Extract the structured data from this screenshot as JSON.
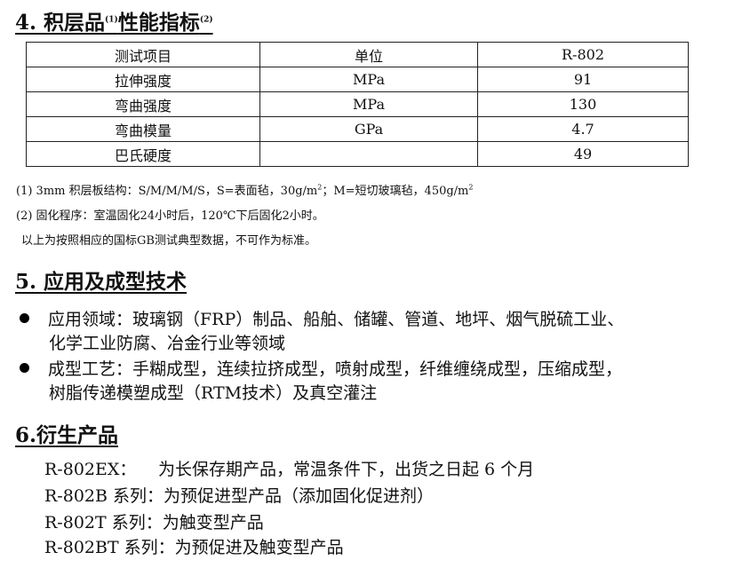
{
  "section4": {
    "title_a": "4. 积层品",
    "sup1": "(1)",
    "title_b": "性能指标",
    "sup2": "(2)"
  },
  "table": {
    "headers": [
      "测试项目",
      "单位",
      "R-802"
    ],
    "rows": [
      [
        "拉伸强度",
        "MPa",
        "91"
      ],
      [
        "弯曲强度",
        "MPa",
        "130"
      ],
      [
        "弯曲模量",
        "GPa",
        "4.7"
      ],
      [
        "巴氏硬度",
        "",
        "49"
      ]
    ]
  },
  "notes": {
    "n1_a": "(1) 3mm  积层板结构：S/M/M/M/S，S=表面毡，30g/m",
    "n1_b": "；M=短切玻璃毡，450g/m",
    "sup": "2",
    "n2": "(2)  固化程序：室温固化24小时后，120℃下后固化2小时。",
    "n3": "以上为按照相应的国标GB测试典型数据，不可作为标准。"
  },
  "section5": {
    "title": "5.  应用及成型技术",
    "bullets": [
      [
        "应用领域：玻璃钢（FRP）制品、船舶、储罐、管道、地坪、烟气脱硫工业、",
        "化学工业防腐、冶金行业等领域"
      ],
      [
        "成型工艺：手糊成型，连续拉挤成型，喷射成型，纤维缠绕成型，压缩成型，",
        "树脂传递模塑成型（RTM技术）及真空灌注"
      ]
    ]
  },
  "section6": {
    "title": "6.衍生产品",
    "items": [
      [
        "R-802EX：",
        "为长保存期产品，常温条件下，出货之日起 6 个月"
      ],
      [
        "R-802B 系列：",
        "为预促进型产品（添加固化促进剂）"
      ],
      [
        "R-802T 系列：",
        "为触变型产品"
      ],
      [
        "R-802BT 系列：",
        "为预促进及触变型产品"
      ]
    ]
  }
}
